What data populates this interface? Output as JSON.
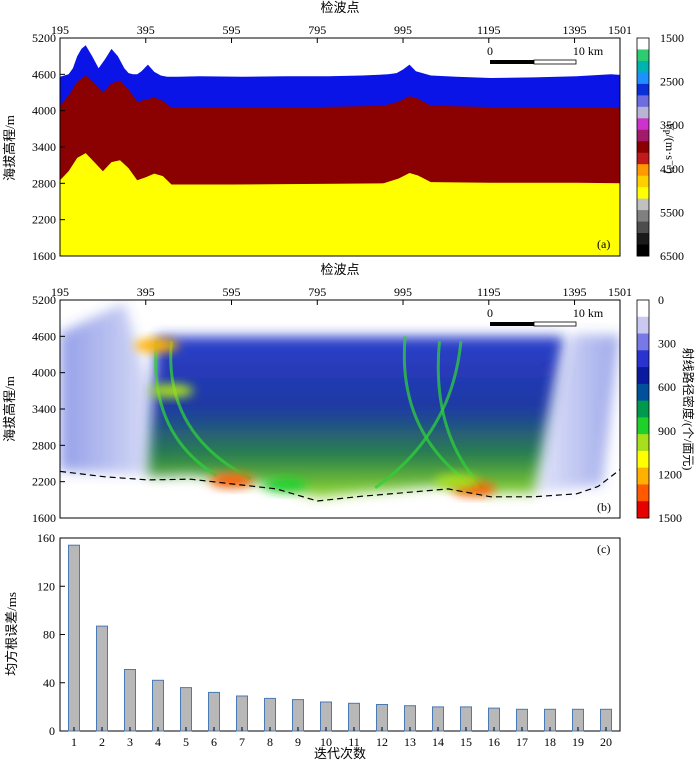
{
  "chart_data": [
    {
      "panel_label": "(a)",
      "type": "area",
      "xlabel": "检波点",
      "ylabel": "海拔高程/m",
      "xticks": [
        195,
        395,
        595,
        795,
        995,
        1195,
        1395,
        1501
      ],
      "xlim": [
        195,
        1501
      ],
      "yticks": [
        1600,
        2200,
        2800,
        3400,
        4000,
        4600,
        5200
      ],
      "ylim": [
        1600,
        5200
      ],
      "scale_bar": {
        "start": "0",
        "end": "10 km"
      },
      "colorbar": {
        "label": "V",
        "label_sub": "P",
        "label_unit": "/(m·s⁻¹)",
        "ticks": [
          1500,
          2500,
          3500,
          4500,
          5500,
          6500
        ],
        "colors": [
          "#ffffff",
          "#2ecc71",
          "#00b3b3",
          "#1e90ff",
          "#0b2fd6",
          "#6d6ddf",
          "#b9b3d6",
          "#cc33cc",
          "#a31a6b",
          "#8b0000",
          "#c21a1a",
          "#ff9900",
          "#ffd000",
          "#ffff00",
          "#c0c0c0",
          "#808080",
          "#4d4d4d",
          "#1a1a1a",
          "#000000"
        ]
      },
      "layers": [
        {
          "name": "layer-1",
          "color": "#0a14e6",
          "top_x": [
            195,
            215,
            225,
            235,
            245,
            255,
            270,
            285,
            300,
            315,
            330,
            345,
            355,
            365,
            375,
            385,
            400,
            415,
            430,
            445,
            470,
            520,
            620,
            720,
            820,
            900,
            960,
            980,
            995,
            1010,
            1025,
            1060,
            1120,
            1200,
            1300,
            1400,
            1480,
            1501
          ],
          "top_y": [
            4560,
            4600,
            4700,
            4900,
            5020,
            5080,
            4900,
            4700,
            4850,
            5020,
            4900,
            4700,
            4620,
            4600,
            4600,
            4650,
            4760,
            4640,
            4580,
            4560,
            4560,
            4570,
            4560,
            4570,
            4570,
            4580,
            4600,
            4620,
            4680,
            4760,
            4650,
            4580,
            4560,
            4540,
            4550,
            4570,
            4600,
            4590
          ]
        },
        {
          "name": "layer-2",
          "color": "#8b0000",
          "top_x": [
            195,
            215,
            235,
            255,
            275,
            295,
            315,
            335,
            355,
            375,
            395,
            415,
            435,
            455,
            600,
            800,
            950,
            985,
            1010,
            1030,
            1060,
            1200,
            1400,
            1501
          ],
          "top_y": [
            4080,
            4250,
            4480,
            4580,
            4450,
            4300,
            4450,
            4500,
            4350,
            4150,
            4180,
            4220,
            4160,
            4050,
            4050,
            4060,
            4080,
            4150,
            4240,
            4200,
            4080,
            4060,
            4060,
            4040
          ]
        },
        {
          "name": "layer-3",
          "color": "#ffff00",
          "top_x": [
            195,
            215,
            235,
            255,
            275,
            295,
            315,
            335,
            355,
            375,
            395,
            415,
            435,
            455,
            600,
            800,
            950,
            985,
            1010,
            1030,
            1060,
            1200,
            1400,
            1501
          ],
          "top_y": [
            2850,
            3000,
            3220,
            3300,
            3150,
            3000,
            3150,
            3180,
            3050,
            2850,
            2900,
            2960,
            2920,
            2780,
            2780,
            2790,
            2800,
            2880,
            2970,
            2930,
            2820,
            2810,
            2810,
            2800
          ]
        }
      ]
    },
    {
      "panel_label": "(b)",
      "type": "heatmap",
      "xlabel": "检波点",
      "ylabel": "海拔高程/m",
      "xticks": [
        195,
        395,
        595,
        795,
        995,
        1195,
        1395,
        1501
      ],
      "xlim": [
        195,
        1501
      ],
      "yticks": [
        1600,
        2200,
        2800,
        3400,
        4000,
        4600,
        5200
      ],
      "ylim": [
        1600,
        5200
      ],
      "scale_bar": {
        "start": "0",
        "end": "10 km"
      },
      "colorbar": {
        "label": "射线路径密度/(个/面元)",
        "ticks": [
          0,
          300,
          600,
          900,
          1200,
          1500
        ],
        "colors": [
          "#ffffff",
          "#c8c8f0",
          "#7878e6",
          "#2a32d0",
          "#0a1aa0",
          "#00509c",
          "#009a4e",
          "#1fd02a",
          "#a7e01a",
          "#ffff00",
          "#ffb000",
          "#ff5a00",
          "#e60000"
        ]
      },
      "bottom_boundary": {
        "x": [
          195,
          300,
          400,
          500,
          600,
          700,
          795,
          900,
          1000,
          1100,
          1200,
          1300,
          1400,
          1450,
          1501
        ],
        "y": [
          2370,
          2280,
          2230,
          2240,
          2160,
          2080,
          1880,
          1960,
          2020,
          2080,
          1950,
          1950,
          2000,
          2120,
          2400
        ]
      },
      "hotspots": [
        {
          "x": 595,
          "y": 2220,
          "intensity": 1400
        },
        {
          "x": 420,
          "y": 4450,
          "intensity": 1300
        },
        {
          "x": 455,
          "y": 3700,
          "intensity": 1050
        },
        {
          "x": 1160,
          "y": 2080,
          "intensity": 1350
        },
        {
          "x": 1120,
          "y": 2200,
          "intensity": 1000
        },
        {
          "x": 720,
          "y": 2150,
          "intensity": 900
        }
      ]
    },
    {
      "panel_label": "(c)",
      "type": "bar",
      "xlabel": "迭代次数",
      "ylabel": "均方根误差/ms",
      "categories": [
        "1",
        "2",
        "3",
        "4",
        "5",
        "6",
        "7",
        "8",
        "9",
        "10",
        "11",
        "12",
        "13",
        "14",
        "15",
        "16",
        "17",
        "18",
        "19",
        "20"
      ],
      "values": [
        154,
        87,
        51,
        42,
        36,
        32,
        29,
        27,
        26,
        24,
        23,
        22,
        21,
        20,
        20,
        19,
        18,
        18,
        18,
        18
      ],
      "yticks": [
        0,
        40,
        80,
        120,
        160
      ],
      "ylim": [
        0,
        160
      ],
      "bar_color": "#b8b8b8",
      "bar_edge": "#4a7ab5"
    }
  ]
}
